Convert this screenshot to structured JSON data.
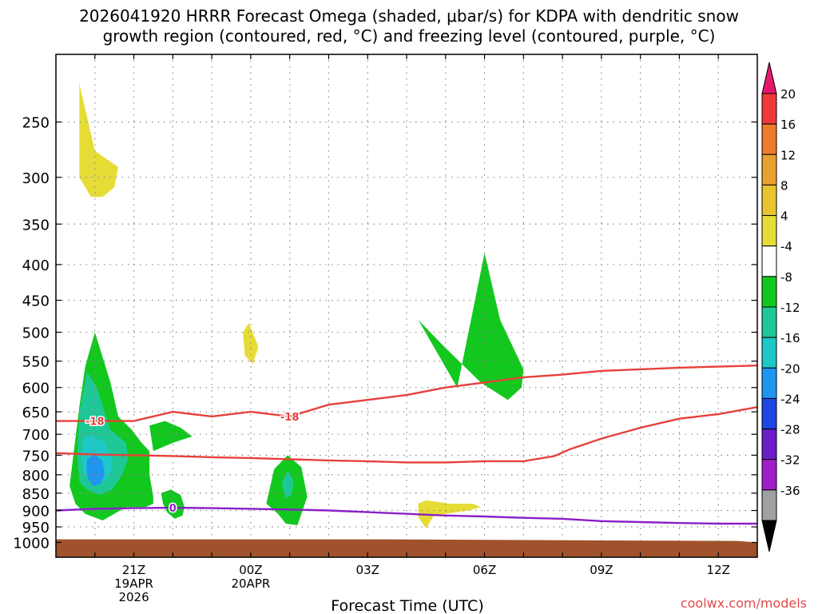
{
  "title_line1": "2026041920 HRRR Forecast Omega (shaded, μbar/s) for KDPA with dendritic snow",
  "title_line2": "growth region (contoured, red, °C) and freezing level (contoured, purple, °C)",
  "xlabel": "Forecast Time (UTC)",
  "watermark": "coolwx.com/models",
  "colors": {
    "dgz_contour": "#e8403a",
    "freezing_contour": "#8a1fc8",
    "ground": "#a0522d",
    "grid": "#888888"
  },
  "chart_data": {
    "type": "heatmap",
    "x_range_hours_from_19Z": [
      0,
      18
    ],
    "y_axis": {
      "scale": "log-pressure",
      "inverted": true,
      "range_mb": [
        1050,
        200
      ],
      "ticks": [
        250,
        300,
        350,
        400,
        450,
        500,
        550,
        600,
        650,
        700,
        750,
        800,
        850,
        900,
        950,
        1000
      ]
    },
    "x_ticks": [
      {
        "hours": 2,
        "label1": "21Z",
        "label2": "19APR",
        "label3": "2026"
      },
      {
        "hours": 5,
        "label1": "00Z",
        "label2": "20APR",
        "label3": ""
      },
      {
        "hours": 8,
        "label1": "03Z",
        "label2": "",
        "label3": ""
      },
      {
        "hours": 11,
        "label1": "06Z",
        "label2": "",
        "label3": ""
      },
      {
        "hours": 14,
        "label1": "09Z",
        "label2": "",
        "label3": ""
      },
      {
        "hours": 17,
        "label1": "12Z",
        "label2": "",
        "label3": ""
      }
    ],
    "grid": true,
    "colorbar": {
      "levels": [
        {
          "label": "20",
          "color": "#f03a3a"
        },
        {
          "label": "16",
          "color": "#ee7a2a"
        },
        {
          "label": "12",
          "color": "#e8a030"
        },
        {
          "label": "8",
          "color": "#e8c530"
        },
        {
          "label": "4",
          "color": "#e6dc36"
        },
        {
          "label": "-4",
          "color": "#ffffff"
        },
        {
          "label": "-8",
          "color": "#12c81e"
        },
        {
          "label": "-12",
          "color": "#1ec896"
        },
        {
          "label": "-16",
          "color": "#1ec8c8"
        },
        {
          "label": "-20",
          "color": "#1e96f0"
        },
        {
          "label": "-24",
          "color": "#1e46e6"
        },
        {
          "label": "-28",
          "color": "#6a1ec8"
        },
        {
          "label": "-32",
          "color": "#a01ec8"
        },
        {
          "label": "-36",
          "color": "#a0a0a0"
        }
      ],
      "top_overflow_color": "#e6186e",
      "bottom_overflow_color": "#000000"
    },
    "omega_regions": [
      {
        "color": "#e6dc36",
        "points": [
          [
            0.6,
            220
          ],
          [
            1.0,
            275
          ],
          [
            1.6,
            290
          ],
          [
            1.5,
            310
          ],
          [
            1.2,
            320
          ],
          [
            0.9,
            320
          ],
          [
            0.6,
            300
          ],
          [
            0.6,
            260
          ]
        ]
      },
      {
        "color": "#12c81e",
        "points": [
          [
            0.6,
            640
          ],
          [
            0.75,
            560
          ],
          [
            1.0,
            500
          ],
          [
            1.4,
            590
          ],
          [
            1.6,
            660
          ],
          [
            1.95,
            690
          ],
          [
            2.2,
            720
          ],
          [
            2.4,
            740
          ],
          [
            2.4,
            800
          ],
          [
            2.5,
            860
          ],
          [
            2.5,
            880
          ],
          [
            2.3,
            890
          ],
          [
            1.8,
            890
          ],
          [
            1.2,
            930
          ],
          [
            0.75,
            910
          ],
          [
            0.5,
            880
          ],
          [
            0.35,
            830
          ]
        ]
      },
      {
        "color": "#12c81e",
        "points": [
          [
            2.4,
            680
          ],
          [
            2.8,
            670
          ],
          [
            3.2,
            685
          ],
          [
            3.5,
            705
          ],
          [
            3.0,
            720
          ],
          [
            2.5,
            740
          ]
        ]
      },
      {
        "color": "#12c81e",
        "points": [
          [
            2.7,
            850
          ],
          [
            2.95,
            840
          ],
          [
            3.2,
            855
          ],
          [
            3.3,
            890
          ],
          [
            3.25,
            915
          ],
          [
            3.05,
            925
          ],
          [
            2.85,
            905
          ],
          [
            2.75,
            880
          ]
        ]
      },
      {
        "color": "#1ec896",
        "points": [
          [
            0.6,
            650
          ],
          [
            0.8,
            570
          ],
          [
            1.05,
            600
          ],
          [
            1.4,
            690
          ],
          [
            1.8,
            720
          ],
          [
            1.85,
            760
          ],
          [
            1.7,
            800
          ],
          [
            1.45,
            840
          ],
          [
            1.1,
            855
          ],
          [
            0.8,
            840
          ],
          [
            0.6,
            820
          ],
          [
            0.55,
            750
          ]
        ]
      },
      {
        "color": "#1ec8c8",
        "points": [
          [
            0.7,
            715
          ],
          [
            0.9,
            700
          ],
          [
            1.25,
            720
          ],
          [
            1.45,
            760
          ],
          [
            1.4,
            795
          ],
          [
            1.2,
            820
          ],
          [
            0.95,
            825
          ],
          [
            0.75,
            800
          ],
          [
            0.65,
            760
          ]
        ]
      },
      {
        "color": "#1e96f0",
        "points": [
          [
            0.8,
            760
          ],
          [
            1.0,
            748
          ],
          [
            1.2,
            765
          ],
          [
            1.25,
            800
          ],
          [
            1.15,
            825
          ],
          [
            0.95,
            830
          ],
          [
            0.82,
            810
          ],
          [
            0.78,
            785
          ]
        ]
      },
      {
        "color": "#e6dc36",
        "points": [
          [
            4.8,
            500
          ],
          [
            4.95,
            485
          ],
          [
            5.2,
            525
          ],
          [
            5.05,
            555
          ],
          [
            4.85,
            540
          ]
        ]
      },
      {
        "color": "#12c81e",
        "points": [
          [
            5.4,
            880
          ],
          [
            5.6,
            785
          ],
          [
            5.95,
            750
          ],
          [
            6.3,
            780
          ],
          [
            6.45,
            860
          ],
          [
            6.2,
            945
          ],
          [
            5.9,
            940
          ],
          [
            5.7,
            910
          ]
        ]
      },
      {
        "color": "#1ec896",
        "points": [
          [
            5.8,
            820
          ],
          [
            5.95,
            790
          ],
          [
            6.1,
            815
          ],
          [
            6.05,
            855
          ],
          [
            5.9,
            865
          ],
          [
            5.85,
            845
          ]
        ]
      },
      {
        "color": "#12c81e",
        "points": [
          [
            9.3,
            480
          ],
          [
            10.3,
            600
          ],
          [
            11.0,
            385
          ],
          [
            11.4,
            480
          ],
          [
            12.0,
            565
          ],
          [
            11.95,
            600
          ],
          [
            11.6,
            625
          ],
          [
            10.9,
            590
          ],
          [
            9.9,
            520
          ]
        ]
      },
      {
        "color": "#e6dc36",
        "points": [
          [
            9.3,
            880
          ],
          [
            9.5,
            870
          ],
          [
            10.1,
            880
          ],
          [
            10.7,
            880
          ],
          [
            10.9,
            890
          ],
          [
            10.6,
            900
          ],
          [
            10.0,
            910
          ],
          [
            9.7,
            915
          ],
          [
            9.5,
            955
          ],
          [
            9.3,
            920
          ]
        ]
      }
    ],
    "ground_top_mb": 990,
    "dgz_contours": [
      {
        "label": "-18",
        "label_at": [
          1.0,
          670
        ],
        "points": [
          [
            0,
            670
          ],
          [
            1.0,
            670
          ],
          [
            2.0,
            670
          ],
          [
            3.0,
            650
          ],
          [
            3.5,
            655
          ],
          [
            4.0,
            660
          ],
          [
            5.0,
            650
          ],
          [
            6.0,
            660
          ],
          [
            7.0,
            635
          ],
          [
            8.0,
            625
          ],
          [
            9.0,
            615
          ],
          [
            10.0,
            600
          ],
          [
            11.0,
            590
          ],
          [
            12.0,
            580
          ],
          [
            13.0,
            575
          ],
          [
            14.0,
            568
          ],
          [
            15.0,
            565
          ],
          [
            16.0,
            562
          ],
          [
            17.0,
            560
          ],
          [
            18.0,
            558
          ]
        ]
      },
      {
        "label": "-18",
        "label_at": [
          6.0,
          660
        ],
        "points": [
          [
            0,
            745
          ],
          [
            1.0,
            748
          ],
          [
            2.0,
            750
          ],
          [
            3.0,
            752
          ],
          [
            4.0,
            755
          ],
          [
            5.0,
            757
          ],
          [
            6.0,
            760
          ],
          [
            7.0,
            763
          ],
          [
            8.0,
            765
          ],
          [
            9.0,
            768
          ],
          [
            10.0,
            768
          ],
          [
            11.0,
            765
          ],
          [
            12.0,
            765
          ],
          [
            12.8,
            752
          ],
          [
            13.2,
            735
          ],
          [
            14.0,
            710
          ],
          [
            15.0,
            685
          ],
          [
            16.0,
            665
          ],
          [
            17.0,
            655
          ],
          [
            18.0,
            640
          ]
        ]
      }
    ],
    "freezing_contours": [
      {
        "label": "0",
        "label_at": [
          3.0,
          892
        ],
        "points": [
          [
            0,
            900
          ],
          [
            1.0,
            895
          ],
          [
            2.0,
            893
          ],
          [
            3.0,
            892
          ],
          [
            4.0,
            893
          ],
          [
            5.0,
            895
          ],
          [
            6.0,
            897
          ],
          [
            7.0,
            900
          ],
          [
            8.0,
            905
          ],
          [
            9.0,
            910
          ],
          [
            10.0,
            915
          ],
          [
            11.0,
            918
          ],
          [
            12.0,
            922
          ],
          [
            13.0,
            925
          ],
          [
            14.0,
            932
          ],
          [
            15.0,
            935
          ],
          [
            16.0,
            938
          ],
          [
            17.0,
            940
          ],
          [
            18.0,
            940
          ]
        ]
      }
    ]
  }
}
